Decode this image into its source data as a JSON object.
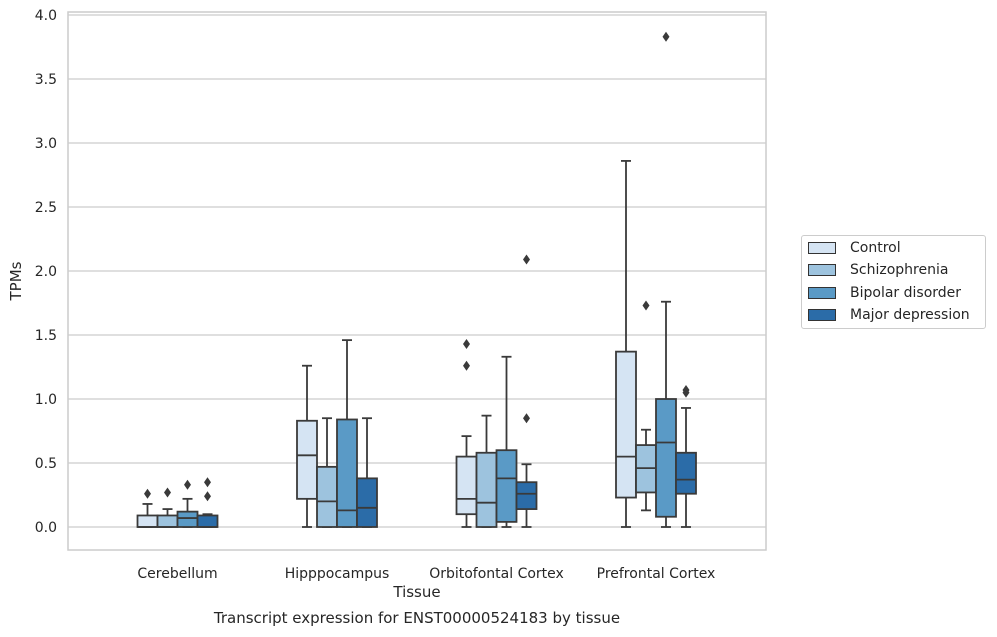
{
  "chart_data": {
    "type": "box",
    "caption": "Transcript expression for ENST00000524183 by tissue",
    "xlabel": "Tissue",
    "ylabel": "TPMs",
    "ylim": [
      -0.18,
      4.03
    ],
    "yticks": [
      "0.0",
      "0.5",
      "1.0",
      "1.5",
      "2.0",
      "2.5",
      "3.0",
      "3.5",
      "4.0"
    ],
    "grid": "horizontal",
    "legend_position": "outside-right",
    "categories": [
      "Cerebellum",
      "Hipppocampus",
      "Orbitofontal Cortex",
      "Prefrontal Cortex"
    ],
    "series": [
      {
        "name": "Control",
        "color": "#d5e4f3",
        "boxes": [
          {
            "whisker_low": 0.0,
            "q1": 0.0,
            "median": 0.0,
            "q3": 0.09,
            "whisker_high": 0.18,
            "outliers": [
              0.26
            ]
          },
          {
            "whisker_low": 0.0,
            "q1": 0.22,
            "median": 0.56,
            "q3": 0.83,
            "whisker_high": 1.26,
            "outliers": []
          },
          {
            "whisker_low": 0.0,
            "q1": 0.1,
            "median": 0.22,
            "q3": 0.55,
            "whisker_high": 0.71,
            "outliers": [
              1.26,
              1.43
            ]
          },
          {
            "whisker_low": 0.0,
            "q1": 0.23,
            "median": 0.55,
            "q3": 1.37,
            "whisker_high": 2.86,
            "outliers": []
          }
        ]
      },
      {
        "name": "Schizophrenia",
        "color": "#9dc3de",
        "boxes": [
          {
            "whisker_low": 0.0,
            "q1": 0.0,
            "median": 0.0,
            "q3": 0.09,
            "whisker_high": 0.14,
            "outliers": [
              0.27
            ]
          },
          {
            "whisker_low": 0.0,
            "q1": 0.0,
            "median": 0.2,
            "q3": 0.47,
            "whisker_high": 0.85,
            "outliers": []
          },
          {
            "whisker_low": 0.0,
            "q1": 0.0,
            "median": 0.19,
            "q3": 0.58,
            "whisker_high": 0.87,
            "outliers": []
          },
          {
            "whisker_low": 0.13,
            "q1": 0.27,
            "median": 0.46,
            "q3": 0.64,
            "whisker_high": 0.76,
            "outliers": [
              1.73
            ]
          }
        ]
      },
      {
        "name": "Bipolar disorder",
        "color": "#5a9ac6",
        "boxes": [
          {
            "whisker_low": 0.0,
            "q1": 0.0,
            "median": 0.07,
            "q3": 0.12,
            "whisker_high": 0.22,
            "outliers": [
              0.33
            ]
          },
          {
            "whisker_low": 0.0,
            "q1": 0.0,
            "median": 0.13,
            "q3": 0.84,
            "whisker_high": 1.46,
            "outliers": []
          },
          {
            "whisker_low": 0.0,
            "q1": 0.04,
            "median": 0.38,
            "q3": 0.6,
            "whisker_high": 1.33,
            "outliers": []
          },
          {
            "whisker_low": 0.0,
            "q1": 0.08,
            "median": 0.66,
            "q3": 1.0,
            "whisker_high": 1.76,
            "outliers": [
              3.83
            ]
          }
        ]
      },
      {
        "name": "Major depression",
        "color": "#2b6ca8",
        "boxes": [
          {
            "whisker_low": 0.0,
            "q1": 0.0,
            "median": 0.0,
            "q3": 0.09,
            "whisker_high": 0.1,
            "outliers": [
              0.24,
              0.35
            ]
          },
          {
            "whisker_low": 0.0,
            "q1": 0.0,
            "median": 0.15,
            "q3": 0.38,
            "whisker_high": 0.85,
            "outliers": []
          },
          {
            "whisker_low": 0.0,
            "q1": 0.14,
            "median": 0.26,
            "q3": 0.35,
            "whisker_high": 0.49,
            "outliers": [
              0.85,
              2.09
            ]
          },
          {
            "whisker_low": 0.0,
            "q1": 0.26,
            "median": 0.37,
            "q3": 0.58,
            "whisker_high": 0.93,
            "outliers": [
              1.05,
              1.07
            ]
          }
        ]
      }
    ]
  }
}
